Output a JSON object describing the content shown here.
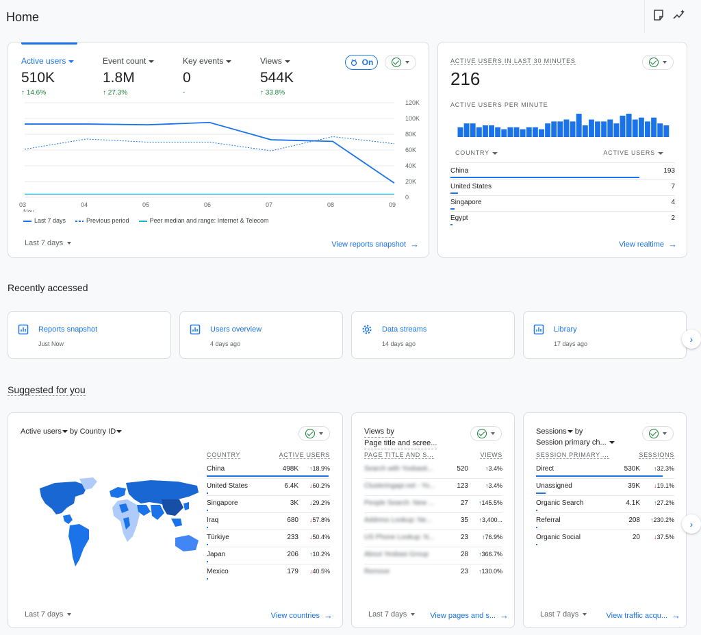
{
  "header": {
    "title": "Home"
  },
  "overview": {
    "metrics": [
      {
        "label": "Active users",
        "value": "510K",
        "delta": "14.6%"
      },
      {
        "label": "Event count",
        "value": "1.8M",
        "delta": "27.3%"
      },
      {
        "label": "Key events",
        "value": "0",
        "delta": "-"
      },
      {
        "label": "Views",
        "value": "544K",
        "delta": "33.8%"
      }
    ],
    "on_label": "On",
    "date_range": "Last 7 days",
    "link": "View reports snapshot",
    "legend": [
      "Last 7 days",
      "Previous period",
      "Peer median and range: Internet & Telecom"
    ]
  },
  "chart_data": {
    "type": "line",
    "x": [
      "03",
      "04",
      "05",
      "06",
      "07",
      "08",
      "09"
    ],
    "x_sublabel": "Nov",
    "yticks": [
      "120K",
      "100K",
      "80K",
      "60K",
      "40K",
      "20K",
      "0"
    ],
    "ylim": [
      0,
      120000
    ],
    "series": [
      {
        "name": "Last 7 days",
        "values": [
          93000,
          93000,
          92000,
          95000,
          73000,
          71000,
          18000
        ]
      },
      {
        "name": "Previous period",
        "values": [
          61000,
          74000,
          70000,
          70000,
          59000,
          77000,
          68000
        ]
      },
      {
        "name": "Peer median and range: Internet & Telecom",
        "values": [
          4000,
          4000,
          4000,
          4000,
          4000,
          4000,
          4000
        ]
      }
    ]
  },
  "realtime": {
    "title": "ACTIVE USERS IN LAST 30 MINUTES",
    "value": "216",
    "subtitle": "ACTIVE USERS PER MINUTE",
    "per_minute": [
      5,
      7,
      7,
      5,
      6,
      6,
      5,
      4,
      5,
      5,
      4,
      5,
      5,
      4,
      7,
      8,
      8,
      9,
      8,
      12,
      6,
      9,
      8,
      8,
      9,
      7,
      11,
      12,
      9,
      10,
      8,
      10,
      7,
      6
    ],
    "col1": "COUNTRY",
    "col2": "ACTIVE USERS",
    "rows": [
      {
        "name": "China",
        "value": "193",
        "pct": 0.97
      },
      {
        "name": "United States",
        "value": "7",
        "pct": 0.04
      },
      {
        "name": "Singapore",
        "value": "4",
        "pct": 0.02
      },
      {
        "name": "Egypt",
        "value": "2",
        "pct": 0.01
      }
    ],
    "link": "View realtime"
  },
  "recent": {
    "title": "Recently accessed",
    "items": [
      {
        "title": "Reports snapshot",
        "sub": "Just Now"
      },
      {
        "title": "Users overview",
        "sub": "4 days ago"
      },
      {
        "title": "Data streams",
        "sub": "14 days ago"
      },
      {
        "title": "Library",
        "sub": "17 days ago"
      }
    ]
  },
  "suggested": {
    "title": "Suggested for you",
    "countries": {
      "title_a": "Active users",
      "title_b": " by Country ID",
      "col1": "COUNTRY",
      "col2": "ACTIVE USERS",
      "rows": [
        {
          "name": "China",
          "value": "498K",
          "delta": "18.9%",
          "dir": "up",
          "pct": 1.0
        },
        {
          "name": "United States",
          "value": "6.4K",
          "delta": "60.2%",
          "dir": "down",
          "pct": 0.013
        },
        {
          "name": "Singapore",
          "value": "3K",
          "delta": "29.2%",
          "dir": "down",
          "pct": 0.006
        },
        {
          "name": "Iraq",
          "value": "680",
          "delta": "57.8%",
          "dir": "down",
          "pct": 0.002
        },
        {
          "name": "Türkiye",
          "value": "233",
          "delta": "50.4%",
          "dir": "down",
          "pct": 0.001
        },
        {
          "name": "Japan",
          "value": "206",
          "delta": "10.2%",
          "dir": "up",
          "pct": 0.001
        },
        {
          "name": "Mexico",
          "value": "179",
          "delta": "40.5%",
          "dir": "down",
          "pct": 0.001
        }
      ],
      "date_range": "Last 7 days",
      "link": "View countries"
    },
    "pages": {
      "title_a": "Views by",
      "title_b": "Page title and scree...",
      "col1": "PAGE TITLE AND S...",
      "col2": "VIEWS",
      "rows": [
        {
          "name": "Search with Yosbasti...",
          "value": "520",
          "delta": "3.4%",
          "dir": "up"
        },
        {
          "name": "Clusteringapi.net - Yo...",
          "value": "123",
          "delta": "3.4%",
          "dir": "up"
        },
        {
          "name": "People Search: New ...",
          "value": "27",
          "delta": "145.5%",
          "dir": "up"
        },
        {
          "name": "Address Lookup: Ne...",
          "value": "35",
          "delta": "3,400...",
          "dir": "up"
        },
        {
          "name": "US Phone Lookup: N...",
          "value": "23",
          "delta": "76.9%",
          "dir": "up"
        },
        {
          "name": "About Yesbasi Group",
          "value": "28",
          "delta": "366.7%",
          "dir": "up"
        },
        {
          "name": "Remove",
          "value": "23",
          "delta": "130.0%",
          "dir": "up"
        }
      ],
      "date_range": "Last 7 days",
      "link": "View pages and s..."
    },
    "sessions": {
      "title_a": "Sessions",
      "title_b": " by",
      "title_c": "Session primary ch...",
      "col1": "SESSION PRIMARY ...",
      "col2": "SESSIONS",
      "rows": [
        {
          "name": "Direct",
          "value": "530K",
          "delta": "32.3%",
          "dir": "up",
          "pct": 1.0
        },
        {
          "name": "Unassigned",
          "value": "39K",
          "delta": "19.1%",
          "dir": "down",
          "pct": 0.074
        },
        {
          "name": "Organic Search",
          "value": "4.1K",
          "delta": "27.2%",
          "dir": "up",
          "pct": 0.008
        },
        {
          "name": "Referral",
          "value": "208",
          "delta": "230.2%",
          "dir": "up",
          "pct": 0.0004
        },
        {
          "name": "Organic Social",
          "value": "20",
          "delta": "37.5%",
          "dir": "down",
          "pct": 0.0001
        }
      ],
      "date_range": "Last 7 days",
      "link": "View traffic acqu..."
    }
  },
  "colors": {
    "accent": "#1a73e8",
    "up": "#188038",
    "down": "#d93025",
    "map_dark": "#1967d2",
    "map_light": "#aecbfa"
  }
}
